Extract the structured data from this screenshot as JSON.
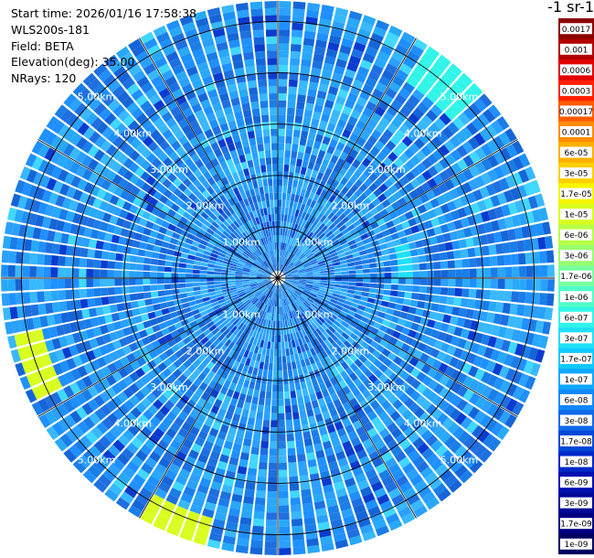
{
  "info": {
    "start_time": "Start time: 2026/01/16 17:58:38",
    "instrument": "WLS200s-181",
    "field": "Field: BETA",
    "elevation": "Elevation(deg): 35.00",
    "nrays": "NRays: 120"
  },
  "colorbar": {
    "title": "-1 sr-1",
    "labels": [
      "0.0017",
      "0.001",
      "0.0006",
      "0.0003",
      "0.00017",
      "0.0001",
      "6e-05",
      "3e-05",
      "1.7e-05",
      "1e-05",
      "6e-06",
      "3e-06",
      "1.7e-06",
      "1e-06",
      "6e-07",
      "3e-07",
      "1.7e-07",
      "1e-07",
      "6e-08",
      "3e-08",
      "1.7e-08",
      "1e-08",
      "6e-09",
      "3e-09",
      "1.7e-09",
      "1e-09"
    ],
    "colors": [
      "#8b0000",
      "#b00000",
      "#e00000",
      "#ff2000",
      "#ff5a00",
      "#ff8c00",
      "#ffb000",
      "#ffd000",
      "#f5f500",
      "#d8ff20",
      "#b8ff48",
      "#98ff70",
      "#78ffa0",
      "#50ffc8",
      "#30f5e8",
      "#20e0f8",
      "#10c8ff",
      "#10a8ff",
      "#1088f8",
      "#1068e8",
      "#0048d8",
      "#0028c8",
      "#0010b0",
      "#000898",
      "#000080",
      "#000060"
    ]
  },
  "chart_data": {
    "type": "heatmap",
    "projection": "polar-ppi",
    "field": "BETA",
    "elevation_deg": 35.0,
    "nrays": 120,
    "range_max_km": 5.4,
    "range_rings": [
      {
        "km": 1,
        "label": "1.00km"
      },
      {
        "km": 2,
        "label": "2.00km"
      },
      {
        "km": 3,
        "label": "3.00km"
      },
      {
        "km": 4,
        "label": "4.00km"
      },
      {
        "km": 5,
        "label": "5.00km"
      }
    ],
    "azimuth_spokes_deg": [
      0,
      30,
      60,
      90,
      120,
      150,
      180,
      210,
      240,
      270,
      300,
      330
    ],
    "background_value": "1e-08 to 3e-08",
    "highlights": [
      {
        "azimuth_deg": 40,
        "range_km": [
          4.5,
          5.3
        ],
        "value": "1e-06"
      },
      {
        "azimuth_deg": 80,
        "range_km": [
          2.3,
          2.6
        ],
        "value": "1e-07"
      },
      {
        "azimuth_deg": 250,
        "range_km": [
          4.6,
          5.2
        ],
        "value": "1e-05"
      },
      {
        "azimuth_deg": 200,
        "range_km": [
          4.8,
          5.3
        ],
        "value": "1e-05"
      }
    ]
  }
}
